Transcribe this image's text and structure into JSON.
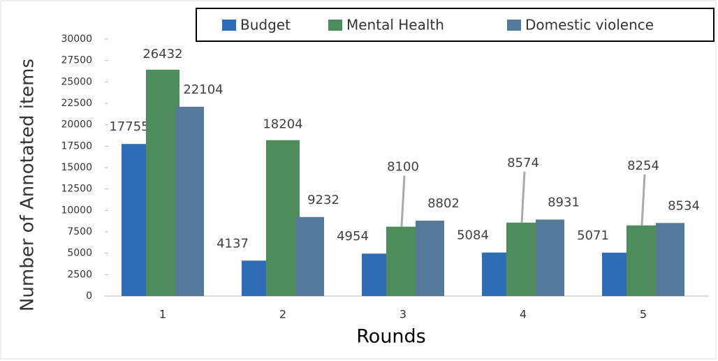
{
  "chart_data": {
    "type": "bar",
    "xlabel": "Rounds",
    "ylabel": "Number of Annotated items",
    "categories": [
      "1",
      "2",
      "3",
      "4",
      "5"
    ],
    "series": [
      {
        "name": "Budget",
        "color": "#2e6db4",
        "values": [
          17755,
          4137,
          4954,
          5084,
          5071
        ]
      },
      {
        "name": "Mental Health",
        "color": "#4e8c5c",
        "values": [
          26432,
          18204,
          8100,
          8574,
          8254
        ]
      },
      {
        "name": "Domestic violence",
        "color": "#557a99",
        "values": [
          22104,
          9232,
          8802,
          8931,
          8534
        ]
      }
    ],
    "ylim": [
      0,
      30000
    ],
    "yticks": [
      0,
      2500,
      5000,
      7500,
      10000,
      12500,
      15000,
      17500,
      20000,
      22500,
      25000,
      27500,
      30000
    ],
    "legend": "top"
  }
}
